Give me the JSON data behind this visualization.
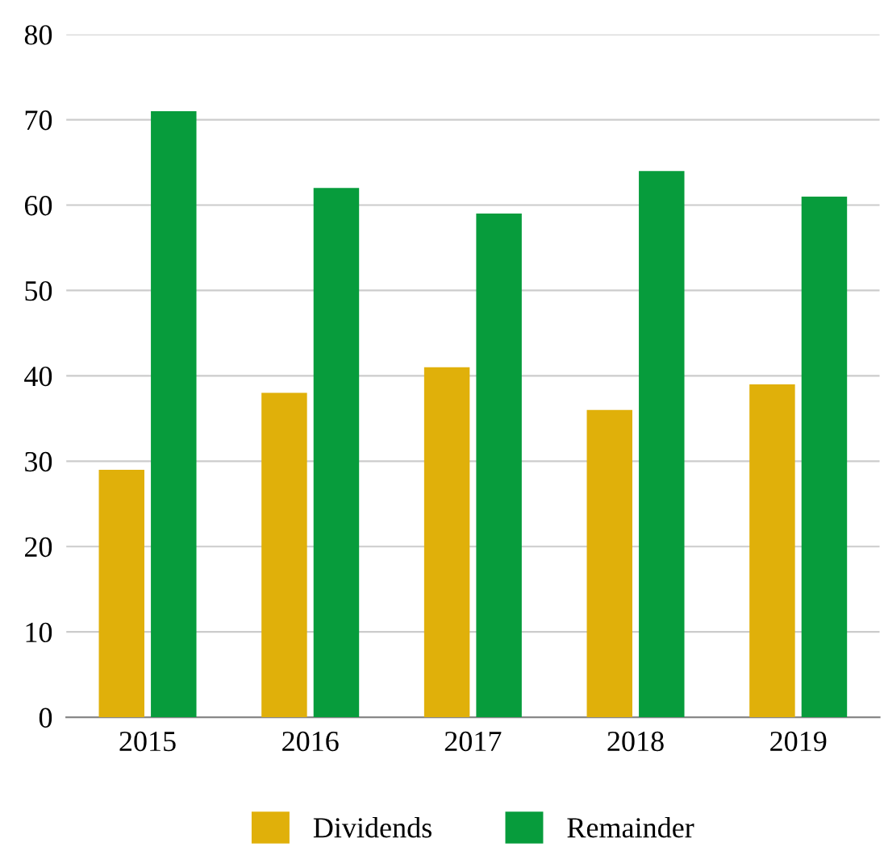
{
  "chart_data": {
    "type": "bar",
    "categories": [
      "2015",
      "2016",
      "2017",
      "2018",
      "2019"
    ],
    "series": [
      {
        "name": "Dividends",
        "color": "#e0b00a",
        "values": [
          29,
          38,
          41,
          36,
          39
        ]
      },
      {
        "name": "Remainder",
        "color": "#079c3c",
        "values": [
          71,
          62,
          59,
          64,
          61
        ]
      }
    ],
    "ylim": [
      0,
      80
    ],
    "yticks": [
      0,
      10,
      20,
      30,
      40,
      50,
      60,
      70,
      80
    ],
    "grid": "y",
    "legend": "bottom"
  }
}
